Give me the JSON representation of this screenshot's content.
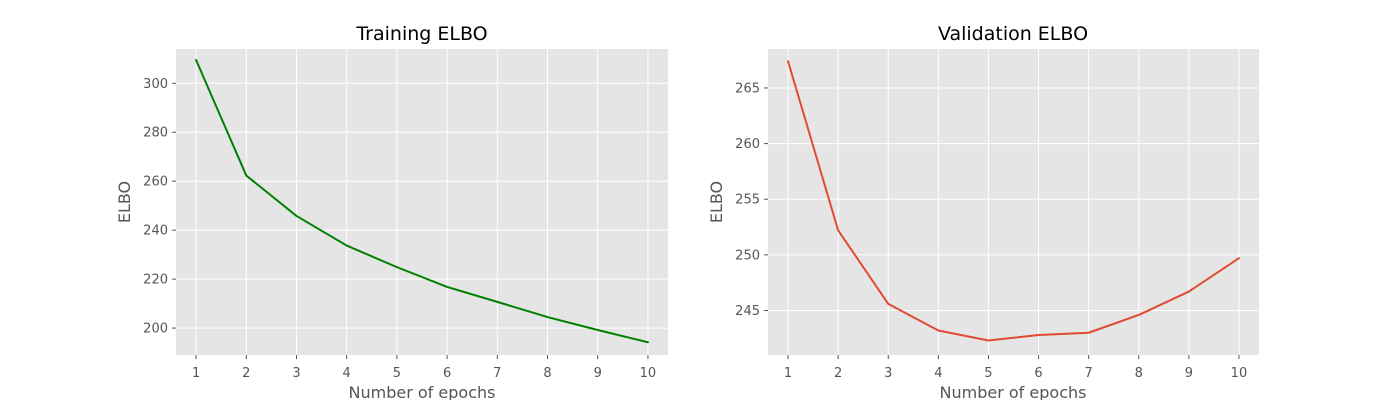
{
  "chart_data": [
    {
      "type": "line",
      "title": "Training ELBO",
      "xlabel": "Number of epochs",
      "ylabel": "ELBO",
      "x": [
        1,
        2,
        3,
        4,
        5,
        6,
        7,
        8,
        9,
        10
      ],
      "xticks": [
        1,
        2,
        3,
        4,
        5,
        6,
        7,
        8,
        9,
        10
      ],
      "xlim": [
        0.6,
        10.4
      ],
      "ylim": [
        189,
        314
      ],
      "yticks": [
        200,
        220,
        240,
        260,
        280,
        300
      ],
      "grid": true,
      "series": [
        {
          "color": "#008000",
          "values": [
            309.5,
            262.3,
            245.8,
            233.7,
            224.9,
            216.8,
            210.7,
            204.5,
            199.2,
            194.2
          ]
        }
      ]
    },
    {
      "type": "line",
      "title": "Validation ELBO",
      "xlabel": "Number of epochs",
      "ylabel": "ELBO",
      "x": [
        1,
        2,
        3,
        4,
        5,
        6,
        7,
        8,
        9,
        10
      ],
      "xticks": [
        1,
        2,
        3,
        4,
        5,
        6,
        7,
        8,
        9,
        10
      ],
      "xlim": [
        0.6,
        10.4
      ],
      "ylim": [
        241,
        268.5
      ],
      "yticks": [
        245,
        250,
        255,
        260,
        265
      ],
      "grid": true,
      "series": [
        {
          "color": "#e24a33",
          "values": [
            267.4,
            252.2,
            245.6,
            243.2,
            242.3,
            242.8,
            243.0,
            244.6,
            246.7,
            249.7
          ]
        }
      ]
    }
  ]
}
